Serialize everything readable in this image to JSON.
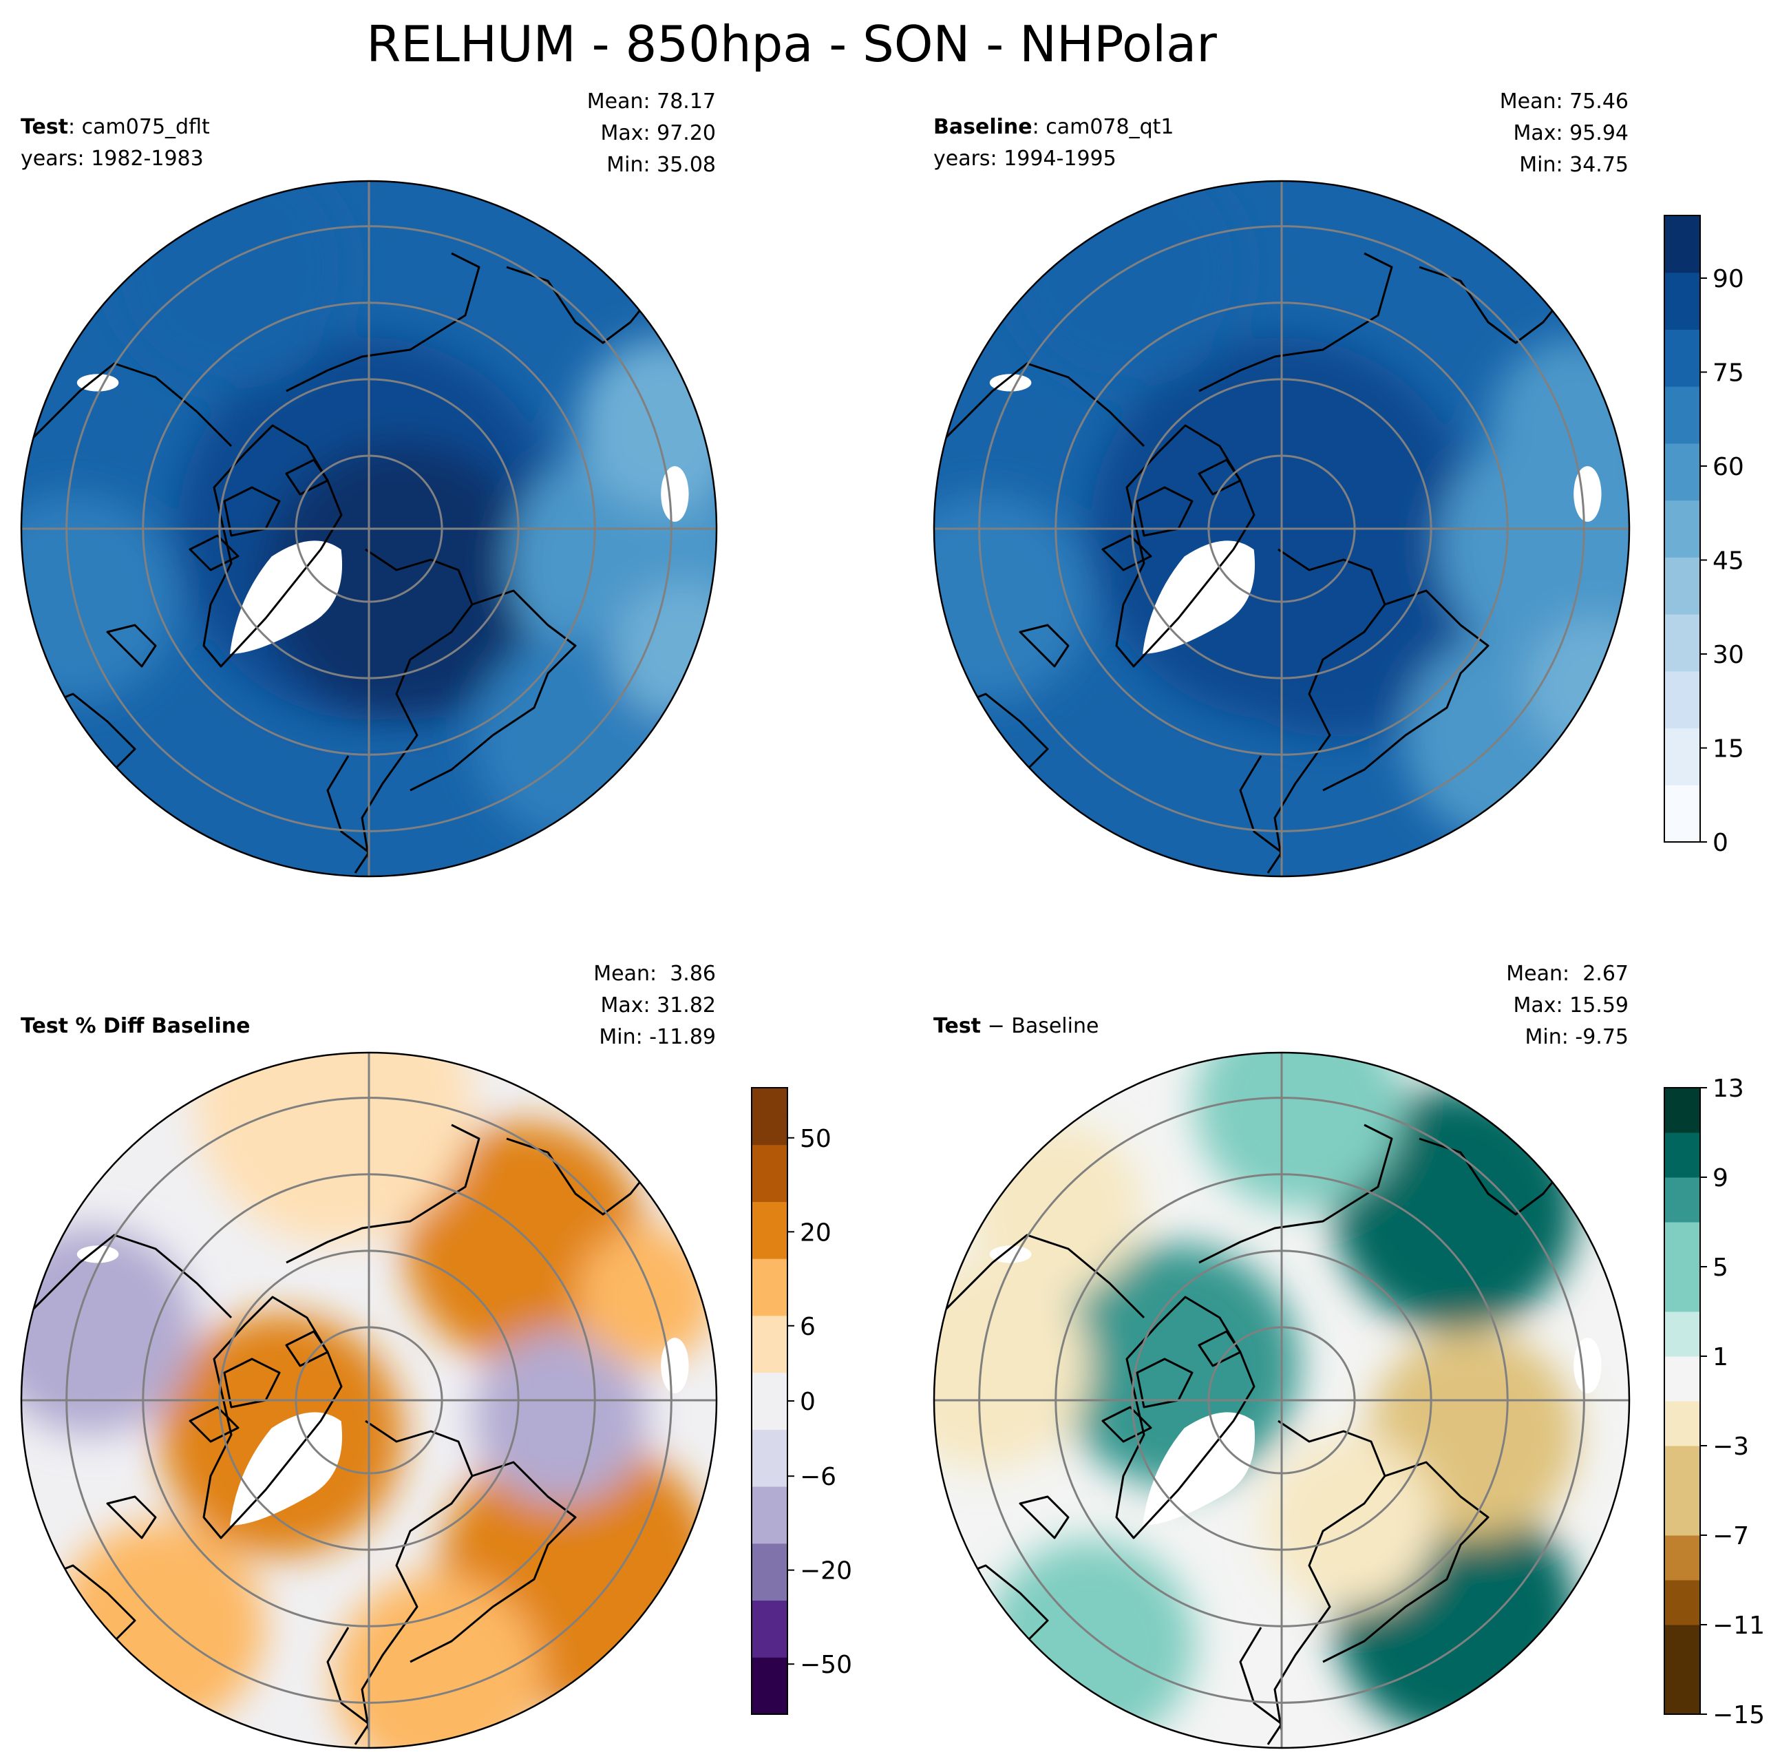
{
  "figure_title": "RELHUM - 850hpa - SON - NHPolar",
  "colors": {
    "grid": "#808080",
    "coast": "#000000",
    "blues": [
      "#f7fbff",
      "#e3eef9",
      "#cfe1f2",
      "#b5d4e9",
      "#93c3df",
      "#6daed5",
      "#4b97c9",
      "#2f7ebc",
      "#1864aa",
      "#0a4a90",
      "#08306b"
    ],
    "purple_orange": [
      "#2d004b",
      "#542788",
      "#8073ac",
      "#b2abd2",
      "#d8daeb",
      "#f0f0f3",
      "#fee0b6",
      "#fdb863",
      "#e08214",
      "#b35806",
      "#7f3b08"
    ],
    "brown_teal": [
      "#543005",
      "#8c510a",
      "#bf812d",
      "#dfc27d",
      "#f6e8c3",
      "#f3f4f3",
      "#c7eae5",
      "#80cdc1",
      "#35978f",
      "#01665e",
      "#003c30"
    ]
  },
  "panels": [
    {
      "label_bold": "Test",
      "label_rest": ": cam075_dflt",
      "subtitle": "years: 1982-1983",
      "stats": [
        "Mean: 78.17",
        "Max: 97.20",
        "Min: 35.08"
      ]
    },
    {
      "label_bold": "Baseline",
      "label_rest": ": cam078_qt1",
      "subtitle": "years: 1994-1995",
      "stats": [
        "Mean: 75.46",
        "Max: 95.94",
        "Min: 34.75"
      ]
    },
    {
      "label_bold": "Test % Diff Baseline",
      "label_rest": "",
      "subtitle": "",
      "stats": [
        "Mean:  3.86",
        "Max: 31.82",
        "Min: -11.89"
      ]
    },
    {
      "label_bold": "Test",
      "label_rest": " − Baseline",
      "subtitle": "",
      "stats": [
        "Mean:  2.67",
        "Max: 15.59",
        "Min: -9.75"
      ]
    }
  ],
  "chart_data": [
    {
      "type": "heatmap",
      "projection": "north-polar-stereographic",
      "title": "Test: cam075_dflt (years: 1982-1983)",
      "variable": "RELHUM",
      "level": "850hpa",
      "season": "SON",
      "mean": 78.17,
      "max": 97.2,
      "min": 35.08,
      "colormap": "Blues",
      "colorbar": {
        "ticks": [
          0,
          15,
          30,
          45,
          60,
          75,
          90
        ],
        "range": [
          0,
          100
        ]
      }
    },
    {
      "type": "heatmap",
      "projection": "north-polar-stereographic",
      "title": "Baseline: cam078_qt1 (years: 1994-1995)",
      "variable": "RELHUM",
      "level": "850hpa",
      "season": "SON",
      "mean": 75.46,
      "max": 95.94,
      "min": 34.75,
      "colormap": "Blues",
      "colorbar": {
        "ticks": [
          0,
          15,
          30,
          45,
          60,
          75,
          90
        ],
        "range": [
          0,
          100
        ]
      }
    },
    {
      "type": "heatmap",
      "projection": "north-polar-stereographic",
      "title": "Test % Diff Baseline",
      "mean": 3.86,
      "max": 31.82,
      "min": -11.89,
      "colormap": "PuOr_r",
      "colorbar": {
        "ticks": [
          -50,
          -20,
          -6,
          0,
          6,
          20,
          50
        ],
        "labels": [
          "−50",
          "−20",
          "−6",
          "0",
          "6",
          "20",
          "50"
        ]
      }
    },
    {
      "type": "heatmap",
      "projection": "north-polar-stereographic",
      "title": "Test − Baseline",
      "mean": 2.67,
      "max": 15.59,
      "min": -9.75,
      "colormap": "BrBG",
      "colorbar": {
        "ticks": [
          -15,
          -11,
          -7,
          -3,
          1,
          5,
          9,
          13
        ],
        "labels": [
          "−15",
          "−11",
          "−7",
          "−3",
          "1",
          "5",
          "9",
          "13"
        ]
      }
    }
  ]
}
